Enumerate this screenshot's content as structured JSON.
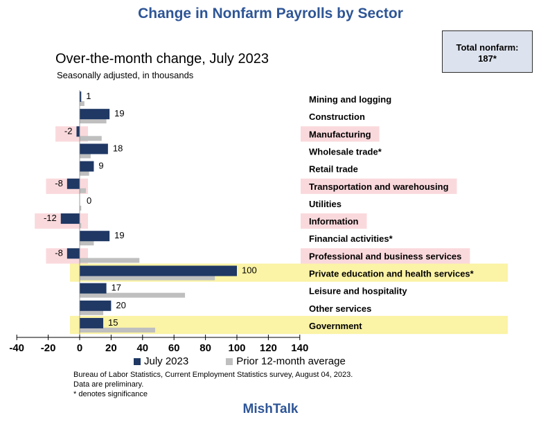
{
  "title": "Change in Nonfarm Payrolls by Sector",
  "total": {
    "label": "Total nonfarm:",
    "value": "187*"
  },
  "brand": "MishTalk",
  "source": {
    "line1": "Bureau of Labor Statistics, Current Employment Statistics survey, August 04, 2023.",
    "line2": "Data are preliminary.",
    "line3": "* denotes significance"
  },
  "colors": {
    "title": "#2E5596",
    "current": "#1F3864",
    "prior": "#BFBFBF",
    "highlight_red": "#FAD9DC",
    "highlight_yellow": "#FBF3A5"
  },
  "chart_data": {
    "type": "bar",
    "orientation": "horizontal",
    "title": "Over-the-month change, July 2023",
    "subtitle": "Seasonally adjusted, in thousands",
    "categories": [
      "Mining and logging",
      "Construction",
      "Manufacturing",
      "Wholesale trade*",
      "Retail trade",
      "Transportation and warehousing",
      "Utilities",
      "Information",
      "Financial activities*",
      "Professional and business services",
      "Private education and health services*",
      "Leisure and hospitality",
      "Other services",
      "Government"
    ],
    "series": [
      {
        "name": "July 2023",
        "values": [
          1,
          19,
          -2,
          18,
          9,
          -8,
          0,
          -12,
          19,
          -8,
          100,
          17,
          20,
          15
        ]
      },
      {
        "name": "Prior 12-month average",
        "values": [
          3,
          17,
          14,
          7,
          6,
          4,
          1,
          1,
          9,
          38,
          86,
          67,
          15,
          48
        ]
      }
    ],
    "data_labels": [
      "1",
      "19",
      "-2",
      "18",
      "9",
      "-8",
      "0",
      "-12",
      "19",
      "-8",
      "100",
      "17",
      "20",
      "15"
    ],
    "highlights": [
      "none",
      "none",
      "red",
      "none",
      "none",
      "red",
      "none",
      "red",
      "none",
      "red",
      "yellow",
      "none",
      "none",
      "yellow"
    ],
    "xlim": [
      -40,
      140
    ],
    "xticks": [
      -40,
      -20,
      0,
      20,
      40,
      60,
      80,
      100,
      120,
      140
    ],
    "tick_labels": [
      "-40",
      "-20",
      "0",
      "20",
      "40",
      "60",
      "80",
      "100",
      "120",
      "140"
    ],
    "legend_position": "bottom"
  }
}
